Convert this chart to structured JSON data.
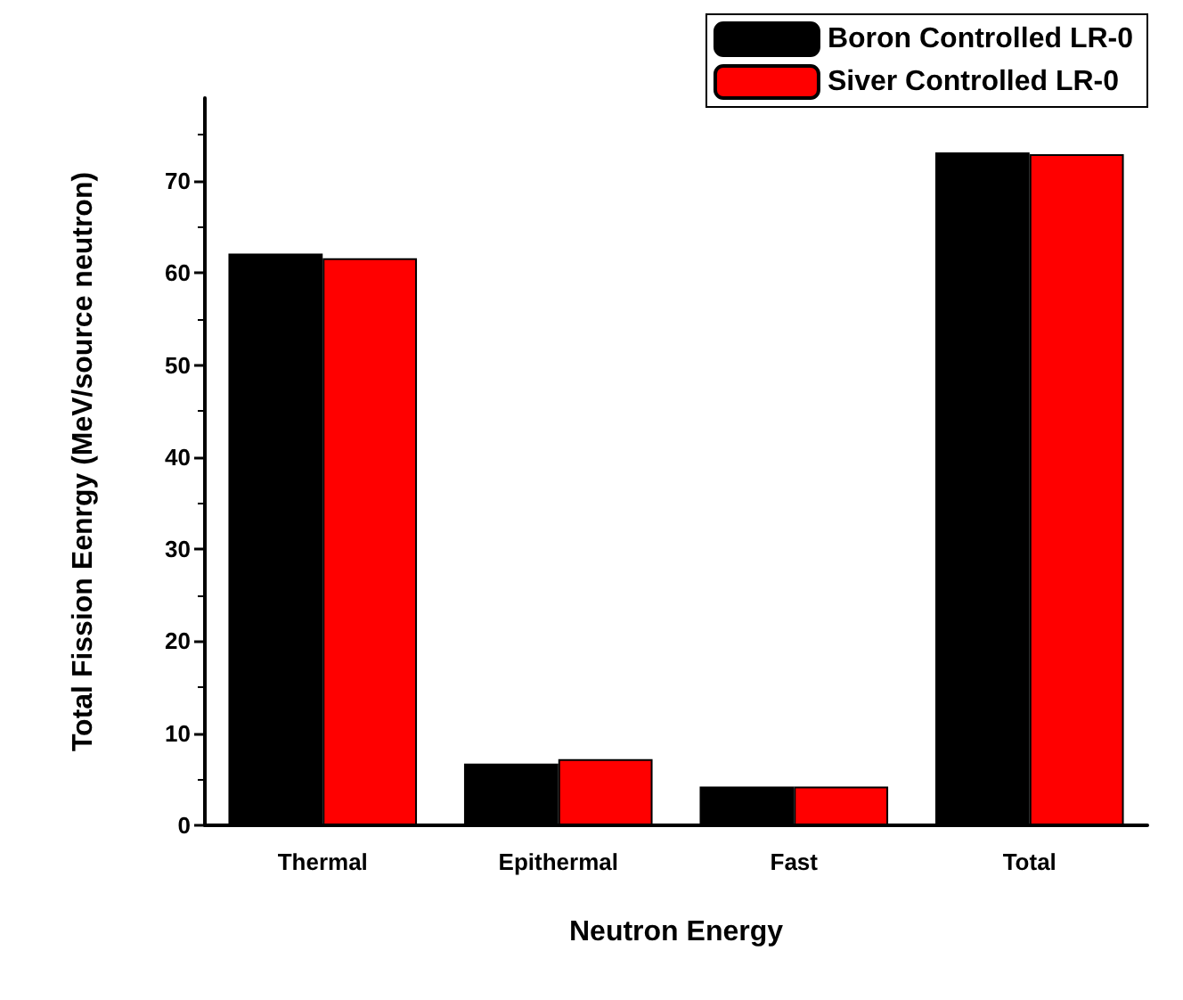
{
  "chart_data": {
    "type": "bar",
    "xlabel": "Neutron Energy",
    "ylabel": "Total Fission Eenrgy (MeV/source neutron)",
    "categories": [
      "Thermal",
      "Epithermal",
      "Fast",
      "Total"
    ],
    "series": [
      {
        "name": "Boron Controlled LR-0",
        "color": "#000000",
        "values": [
          62.1,
          6.7,
          4.2,
          73.1
        ]
      },
      {
        "name": "Siver Controlled LR-0",
        "color": "#ff0000",
        "values": [
          61.6,
          7.2,
          4.2,
          72.9
        ]
      }
    ],
    "ylim": [
      0,
      79
    ],
    "yticks": [
      0,
      10,
      20,
      30,
      40,
      50,
      60,
      70
    ],
    "grid": false,
    "legend": "top right"
  }
}
